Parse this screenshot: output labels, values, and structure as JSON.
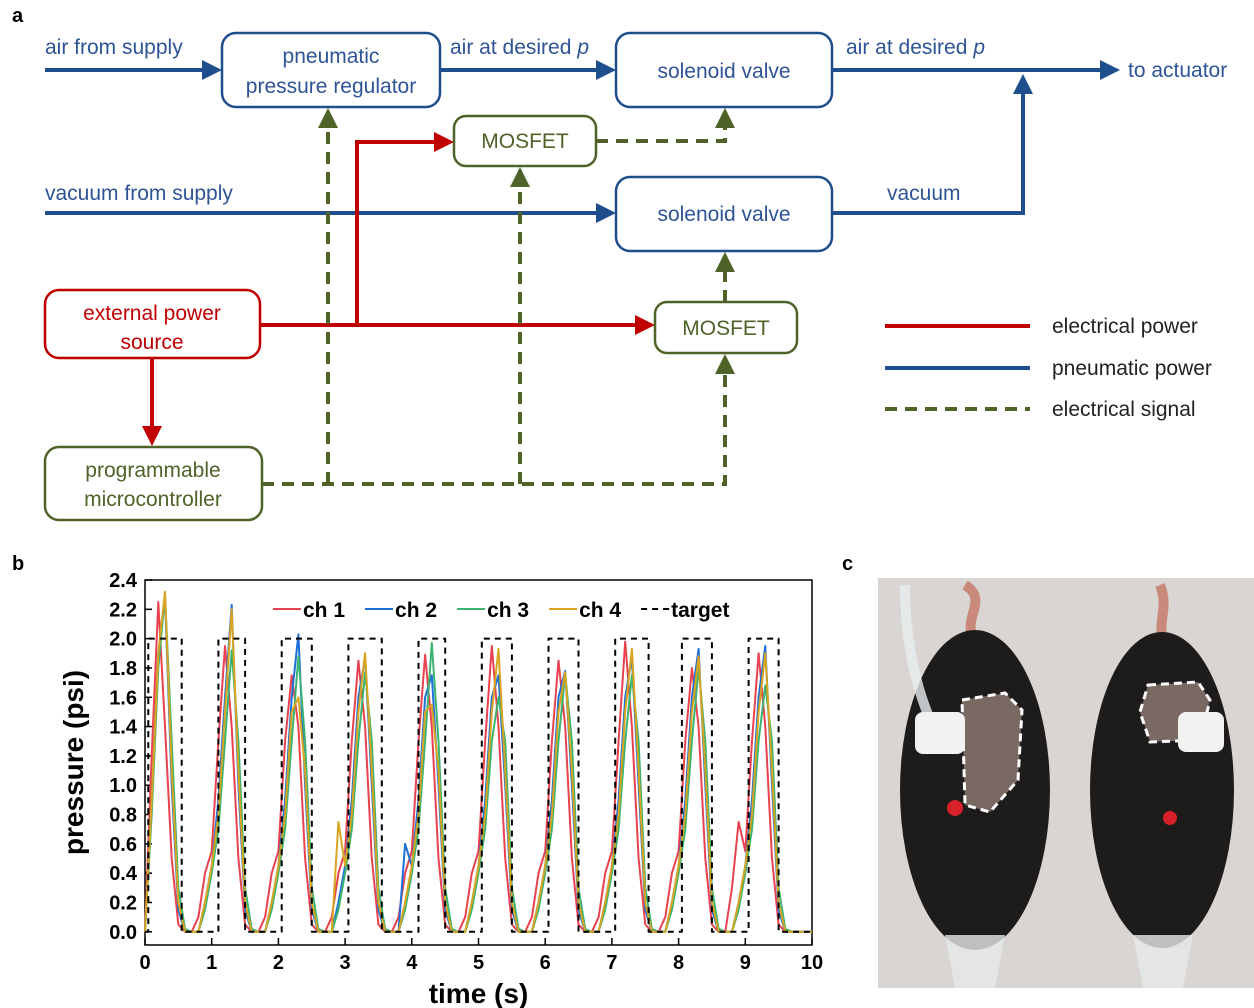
{
  "panel_labels": [
    "a",
    "b",
    "c"
  ],
  "diagram": {
    "nodes": [
      {
        "lines": [
          "pneumatic",
          "pressure regulator"
        ]
      },
      {
        "lines": [
          "solenoid valve"
        ]
      },
      {
        "lines": [
          "MOSFET"
        ]
      },
      {
        "lines": [
          "solenoid valve"
        ]
      },
      {
        "lines": [
          "MOSFET"
        ]
      },
      {
        "lines": [
          "external power",
          "source"
        ]
      },
      {
        "lines": [
          "programmable",
          "microcontroller"
        ]
      }
    ],
    "edge_labels": [
      {
        "text": "air from supply"
      },
      {
        "text": "air at desired",
        "variable": "p"
      },
      {
        "text": "air at desired",
        "variable": "p"
      },
      {
        "text": "to actuator"
      },
      {
        "text": "vacuum from supply"
      },
      {
        "text": "vacuum"
      }
    ],
    "legend": [
      "electrical power",
      "pneumatic power",
      "electrical signal"
    ]
  },
  "chart_data": {
    "type": "line",
    "xlabel": "time (s)",
    "ylabel": "pressure (psi)",
    "xlim": [
      0,
      10
    ],
    "ylim": [
      -0.09,
      2.4
    ],
    "xticks": [
      0,
      1,
      2,
      3,
      4,
      5,
      6,
      7,
      8,
      9,
      10
    ],
    "yticks": [
      {
        "value": 0,
        "label": "0.0"
      },
      0.2,
      0.4,
      0.6,
      0.8,
      {
        "value": 1,
        "label": "1.0"
      },
      1.2,
      1.4,
      1.6,
      1.8,
      {
        "value": 2,
        "label": "2.0"
      },
      2.2,
      2.4
    ],
    "x": [
      0,
      0.1,
      0.2,
      0.3,
      0.4,
      0.5,
      0.6,
      0.7,
      0.8,
      0.9,
      1,
      1.1,
      1.2,
      1.3,
      1.4,
      1.5,
      1.6,
      1.7,
      1.8,
      1.9,
      2,
      2.1,
      2.2,
      2.3,
      2.4,
      2.5,
      2.6,
      2.7,
      2.8,
      2.9,
      3,
      3.1,
      3.2,
      3.3,
      3.4,
      3.5,
      3.6,
      3.7,
      3.8,
      3.9,
      4,
      4.1,
      4.2,
      4.3,
      4.4,
      4.5,
      4.6,
      4.7,
      4.8,
      4.9,
      5,
      5.1,
      5.2,
      5.3,
      5.4,
      5.5,
      5.6,
      5.7,
      5.8,
      5.9,
      6,
      6.1,
      6.2,
      6.3,
      6.4,
      6.5,
      6.6,
      6.7,
      6.8,
      6.9,
      7,
      7.1,
      7.2,
      7.3,
      7.4,
      7.5,
      7.6,
      7.7,
      7.8,
      7.9,
      8,
      8.1,
      8.2,
      8.3,
      8.4,
      8.5,
      8.6,
      8.7,
      8.8,
      8.9,
      9,
      9.1,
      9.2,
      9.3,
      9.4,
      9.5,
      9.6,
      9.7,
      9.8,
      9.9,
      10
    ],
    "series": [
      {
        "name": "ch 1",
        "color": "#e8424f",
        "values": [
          0,
          1.2,
          2.25,
          1.4,
          0.5,
          0.05,
          0,
          0,
          0.1,
          0.4,
          0.55,
          1.3,
          1.95,
          1.4,
          0.5,
          0.05,
          0,
          0,
          0.1,
          0.4,
          0.55,
          1.3,
          1.75,
          1.4,
          0.5,
          0.05,
          0,
          0,
          0.1,
          0.4,
          0.55,
          1.3,
          1.85,
          1.4,
          0.5,
          0.05,
          0,
          0,
          0.1,
          0.4,
          0.55,
          1.3,
          1.89,
          1.4,
          0.5,
          0.05,
          0,
          0,
          0.1,
          0.4,
          0.55,
          1.3,
          1.95,
          1.4,
          0.5,
          0.05,
          0,
          0,
          0.1,
          0.4,
          0.55,
          1.3,
          1.85,
          1.4,
          0.5,
          0.05,
          0,
          0,
          0.1,
          0.4,
          0.55,
          1.3,
          1.98,
          1.4,
          0.5,
          0.05,
          0,
          0,
          0.1,
          0.4,
          0.55,
          1.3,
          1.8,
          1.4,
          0.5,
          0.05,
          0,
          0,
          0.3,
          0.75,
          0.55,
          1.3,
          1.9,
          1.4,
          0.5,
          0.05,
          0,
          0,
          0,
          0,
          0
        ]
      },
      {
        "name": "ch 2",
        "color": "#1f6fd9",
        "values": [
          0,
          0.9,
          1.9,
          2.28,
          1.0,
          0.15,
          0,
          0,
          0,
          0.2,
          0.45,
          0.9,
          1.6,
          2.23,
          1.0,
          0.15,
          0,
          0,
          0,
          0.2,
          0.45,
          0.9,
          1.6,
          2.03,
          1.0,
          0.15,
          0,
          0,
          0,
          0.2,
          0.45,
          0.9,
          1.6,
          1.87,
          1.0,
          0.15,
          0,
          0,
          0,
          0.6,
          0.45,
          0.9,
          1.6,
          1.75,
          1.0,
          0.15,
          0,
          0,
          0,
          0.2,
          0.45,
          0.9,
          1.6,
          1.75,
          1.0,
          0.15,
          0,
          0,
          0,
          0.2,
          0.45,
          0.9,
          1.6,
          1.78,
          1.0,
          0.15,
          0,
          0,
          0,
          0.2,
          0.45,
          0.9,
          1.6,
          1.87,
          1.0,
          0.15,
          0,
          0,
          0,
          0.2,
          0.45,
          0.9,
          1.6,
          1.93,
          1.0,
          0.15,
          0,
          0,
          0,
          0.2,
          0.45,
          0.9,
          1.6,
          1.95,
          1.0,
          0.15,
          0,
          0,
          0,
          0,
          0
        ]
      },
      {
        "name": "ch 3",
        "color": "#3cb371",
        "values": [
          0,
          0.8,
          1.8,
          2.3,
          1.3,
          0.3,
          0.02,
          0,
          0,
          0.15,
          0.4,
          0.7,
          1.3,
          1.92,
          1.3,
          0.3,
          0.02,
          0,
          0,
          0.15,
          0.4,
          0.7,
          1.3,
          1.88,
          1.3,
          0.3,
          0.02,
          0,
          0,
          0.15,
          0.4,
          0.7,
          1.3,
          1.77,
          1.3,
          0.3,
          0.02,
          0,
          0,
          0.15,
          0.4,
          0.7,
          1.3,
          1.97,
          1.3,
          0.3,
          0.02,
          0,
          0,
          0.15,
          0.4,
          0.7,
          1.3,
          1.6,
          1.3,
          0.3,
          0.02,
          0,
          0,
          0.15,
          0.4,
          0.7,
          1.3,
          1.76,
          1.3,
          0.3,
          0.02,
          0,
          0,
          0.15,
          0.4,
          0.7,
          1.3,
          1.75,
          1.3,
          0.3,
          0.02,
          0,
          0,
          0.15,
          0.4,
          0.7,
          1.3,
          1.8,
          1.3,
          0.3,
          0.02,
          0,
          0,
          0.15,
          0.4,
          0.7,
          1.3,
          1.68,
          1.3,
          0.3,
          0.02,
          0,
          0,
          0,
          0
        ]
      },
      {
        "name": "ch 4",
        "color": "#d9a520",
        "values": [
          0,
          0.9,
          1.9,
          2.32,
          1.1,
          0.2,
          0,
          0,
          0,
          0.2,
          0.45,
          0.8,
          1.5,
          2.2,
          1.1,
          0.2,
          0,
          0,
          0,
          0.2,
          0.45,
          0.8,
          1.5,
          1.6,
          1.1,
          0.2,
          0,
          0,
          0,
          0.75,
          0.45,
          0.8,
          1.5,
          1.9,
          1.1,
          0.2,
          0,
          0,
          0,
          0.2,
          0.45,
          0.8,
          1.5,
          1.55,
          1.1,
          0.2,
          0,
          0,
          0,
          0.2,
          0.45,
          0.8,
          1.5,
          1.93,
          1.1,
          0.2,
          0,
          0,
          0,
          0.2,
          0.45,
          0.8,
          1.5,
          1.77,
          1.1,
          0.2,
          0,
          0,
          0,
          0.2,
          0.45,
          0.8,
          1.5,
          1.93,
          1.1,
          0.2,
          0,
          0,
          0,
          0.2,
          0.45,
          0.8,
          1.5,
          1.88,
          1.1,
          0.2,
          0,
          0,
          0,
          0.2,
          0.45,
          0.8,
          1.5,
          1.9,
          1.1,
          0.2,
          0,
          0,
          0,
          0,
          0
        ]
      },
      {
        "name": "target",
        "color": "#000000",
        "dashed": true,
        "x": [
          0,
          0.05,
          0.05,
          0.55,
          0.55,
          1.1,
          1.1,
          1.5,
          1.5,
          2.05,
          2.05,
          2.5,
          2.5,
          3.05,
          3.05,
          3.55,
          3.55,
          4.1,
          4.1,
          4.5,
          4.5,
          5.05,
          5.05,
          5.5,
          5.5,
          6.05,
          6.05,
          6.5,
          6.5,
          7.05,
          7.05,
          7.55,
          7.55,
          8.05,
          8.05,
          8.5,
          8.5,
          9.05,
          9.05,
          9.5,
          9.5,
          10
        ],
        "values": [
          0,
          0,
          2,
          2,
          0,
          0,
          2,
          2,
          0,
          0,
          2,
          2,
          0,
          0,
          2,
          2,
          0,
          0,
          2,
          2,
          0,
          0,
          2,
          2,
          0,
          0,
          2,
          2,
          0,
          0,
          2,
          2,
          0,
          0,
          2,
          2,
          0,
          0,
          2,
          2,
          0,
          0
        ]
      }
    ]
  }
}
